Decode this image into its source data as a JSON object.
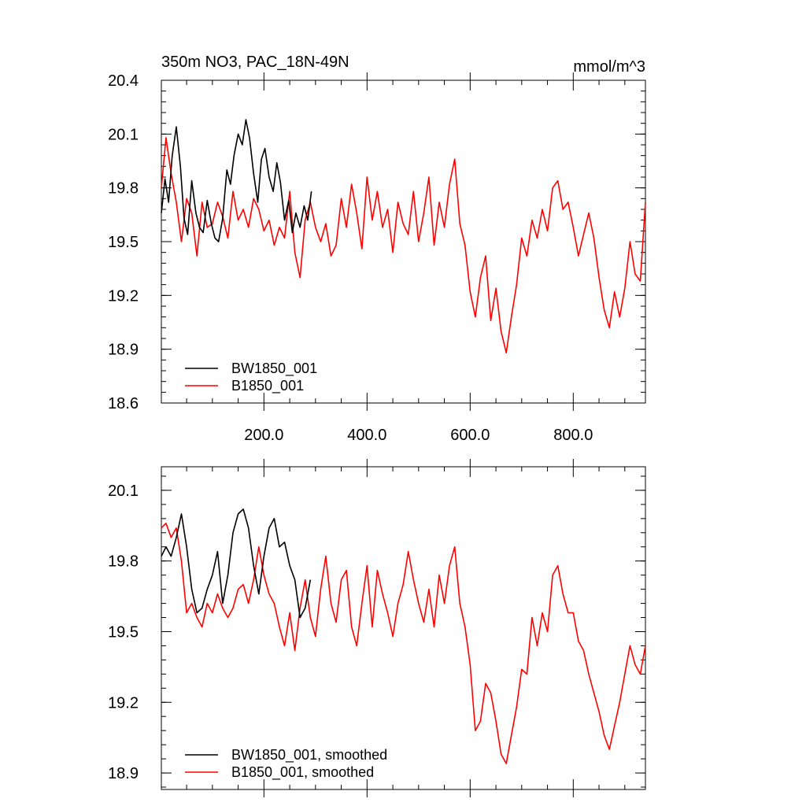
{
  "chart_data": [
    {
      "type": "line",
      "title": "350m NO3, PAC_18N-49N",
      "units": "mmol/m^3",
      "xlabel": "",
      "ylabel": "",
      "xlim": [
        1,
        940
      ],
      "ylim": [
        18.6,
        20.4
      ],
      "x_ticks": [
        200,
        400,
        600,
        800
      ],
      "x_tick_labels": [
        "200.0",
        "400.0",
        "600.0",
        "800.0"
      ],
      "y_ticks": [
        18.6,
        18.9,
        19.2,
        19.5,
        19.8,
        20.1,
        20.4
      ],
      "y_tick_labels": [
        "18.6",
        "18.9",
        "19.2",
        "19.5",
        "19.8",
        "20.1",
        "20.4"
      ],
      "grid": false,
      "legend": "bottom-left",
      "series": [
        {
          "name": "BW1850_001",
          "color": "#000000",
          "x": [
            1,
            8,
            15,
            22,
            30,
            38,
            45,
            52,
            60,
            68,
            75,
            82,
            90,
            98,
            105,
            112,
            120,
            128,
            135,
            142,
            150,
            158,
            165,
            172,
            180,
            188,
            195,
            202,
            210,
            218,
            225,
            232,
            240,
            248,
            255,
            262,
            270,
            278,
            285,
            292
          ],
          "values": [
            19.66,
            19.85,
            19.72,
            19.98,
            20.14,
            19.92,
            19.63,
            19.54,
            19.84,
            19.66,
            19.58,
            19.55,
            19.73,
            19.6,
            19.52,
            19.5,
            19.63,
            19.9,
            19.82,
            19.98,
            20.1,
            20.04,
            20.18,
            20.08,
            19.88,
            19.72,
            19.96,
            20.02,
            19.86,
            19.78,
            19.94,
            19.83,
            19.62,
            19.73,
            19.55,
            19.66,
            19.58,
            19.7,
            19.62,
            19.78
          ]
        },
        {
          "name": "B1850_001",
          "color": "#ff0000",
          "x": [
            1,
            10,
            20,
            30,
            40,
            50,
            60,
            70,
            80,
            90,
            100,
            110,
            120,
            130,
            140,
            150,
            160,
            170,
            180,
            190,
            200,
            210,
            220,
            230,
            240,
            250,
            260,
            270,
            280,
            290,
            300,
            310,
            320,
            330,
            340,
            350,
            360,
            370,
            380,
            390,
            400,
            410,
            420,
            430,
            440,
            450,
            460,
            470,
            480,
            490,
            500,
            510,
            520,
            530,
            540,
            550,
            560,
            570,
            580,
            590,
            600,
            610,
            620,
            630,
            640,
            650,
            660,
            670,
            680,
            690,
            700,
            710,
            720,
            730,
            740,
            750,
            760,
            770,
            780,
            790,
            800,
            810,
            820,
            830,
            840,
            850,
            860,
            870,
            880,
            890,
            900,
            910,
            920,
            930,
            940
          ],
          "values": [
            19.8,
            20.08,
            19.88,
            19.72,
            19.5,
            19.74,
            19.66,
            19.42,
            19.72,
            19.58,
            19.6,
            19.72,
            19.64,
            19.52,
            19.78,
            19.62,
            19.68,
            19.58,
            19.74,
            19.68,
            19.56,
            19.62,
            19.48,
            19.58,
            19.52,
            19.78,
            19.44,
            19.3,
            19.62,
            19.72,
            19.58,
            19.5,
            19.6,
            19.42,
            19.48,
            19.74,
            19.58,
            19.82,
            19.66,
            19.46,
            19.86,
            19.62,
            19.78,
            19.58,
            19.68,
            19.44,
            19.72,
            19.6,
            19.54,
            19.78,
            19.5,
            19.66,
            19.86,
            19.48,
            19.72,
            19.58,
            19.82,
            19.96,
            19.6,
            19.48,
            19.22,
            19.08,
            19.3,
            19.42,
            19.06,
            19.24,
            19.0,
            18.88,
            19.08,
            19.26,
            19.52,
            19.42,
            19.62,
            19.52,
            19.68,
            19.56,
            19.8,
            19.84,
            19.68,
            19.72,
            19.58,
            19.42,
            19.54,
            19.66,
            19.52,
            19.3,
            19.12,
            19.02,
            19.22,
            19.08,
            19.24,
            19.5,
            19.32,
            19.28,
            19.72
          ]
        }
      ]
    },
    {
      "type": "line",
      "title": "",
      "xlabel": "",
      "ylabel": "",
      "xlim": [
        1,
        940
      ],
      "ylim": [
        18.83,
        20.2
      ],
      "x_ticks": [
        200,
        400,
        600,
        800
      ],
      "x_tick_labels": [],
      "y_ticks": [
        18.9,
        19.2,
        19.5,
        19.8,
        20.1
      ],
      "y_tick_labels": [
        "18.9",
        "19.2",
        "19.5",
        "19.8",
        "20.1"
      ],
      "grid": false,
      "legend": "bottom-left",
      "series": [
        {
          "name": "BW1850_001, smoothed",
          "color": "#000000",
          "x": [
            1,
            10,
            20,
            30,
            40,
            50,
            60,
            70,
            80,
            90,
            100,
            110,
            120,
            130,
            140,
            150,
            160,
            170,
            180,
            190,
            200,
            210,
            220,
            230,
            240,
            250,
            260,
            270,
            280,
            290
          ],
          "values": [
            19.82,
            19.86,
            19.82,
            19.9,
            20.0,
            19.86,
            19.68,
            19.58,
            19.6,
            19.68,
            19.74,
            19.84,
            19.62,
            19.74,
            19.92,
            20.0,
            20.02,
            19.94,
            19.78,
            19.66,
            19.82,
            19.94,
            19.98,
            19.86,
            19.88,
            19.78,
            19.72,
            19.56,
            19.6,
            19.72
          ]
        },
        {
          "name": "B1850_001, smoothed",
          "color": "#ff0000",
          "x": [
            1,
            10,
            20,
            30,
            40,
            50,
            60,
            70,
            80,
            90,
            100,
            110,
            120,
            130,
            140,
            150,
            160,
            170,
            180,
            190,
            200,
            210,
            220,
            230,
            240,
            250,
            260,
            270,
            280,
            290,
            300,
            310,
            320,
            330,
            340,
            350,
            360,
            370,
            380,
            390,
            400,
            410,
            420,
            430,
            440,
            450,
            460,
            470,
            480,
            490,
            500,
            510,
            520,
            530,
            540,
            550,
            560,
            570,
            580,
            590,
            600,
            610,
            620,
            630,
            640,
            650,
            660,
            670,
            680,
            690,
            700,
            710,
            720,
            730,
            740,
            750,
            760,
            770,
            780,
            790,
            800,
            810,
            820,
            830,
            840,
            850,
            860,
            870,
            880,
            890,
            900,
            910,
            920,
            930,
            940
          ],
          "values": [
            19.94,
            19.96,
            19.9,
            19.94,
            19.8,
            19.58,
            19.62,
            19.56,
            19.52,
            19.62,
            19.58,
            19.66,
            19.6,
            19.56,
            19.6,
            19.68,
            19.7,
            19.62,
            19.72,
            19.86,
            19.74,
            19.66,
            19.62,
            19.52,
            19.44,
            19.58,
            19.42,
            19.6,
            19.72,
            19.56,
            19.48,
            19.68,
            19.82,
            19.62,
            19.54,
            19.72,
            19.76,
            19.52,
            19.44,
            19.62,
            19.78,
            19.52,
            19.76,
            19.66,
            19.58,
            19.48,
            19.62,
            19.7,
            19.84,
            19.72,
            19.62,
            19.54,
            19.68,
            19.52,
            19.74,
            19.62,
            19.78,
            19.86,
            19.62,
            19.52,
            19.36,
            19.08,
            19.12,
            19.28,
            19.24,
            19.12,
            18.98,
            18.94,
            19.06,
            19.18,
            19.34,
            19.32,
            19.56,
            19.44,
            19.58,
            19.5,
            19.74,
            19.78,
            19.66,
            19.58,
            19.58,
            19.46,
            19.42,
            19.32,
            19.24,
            19.16,
            19.06,
            19.0,
            19.1,
            19.2,
            19.32,
            19.44,
            19.36,
            19.32,
            19.44
          ]
        }
      ]
    }
  ]
}
